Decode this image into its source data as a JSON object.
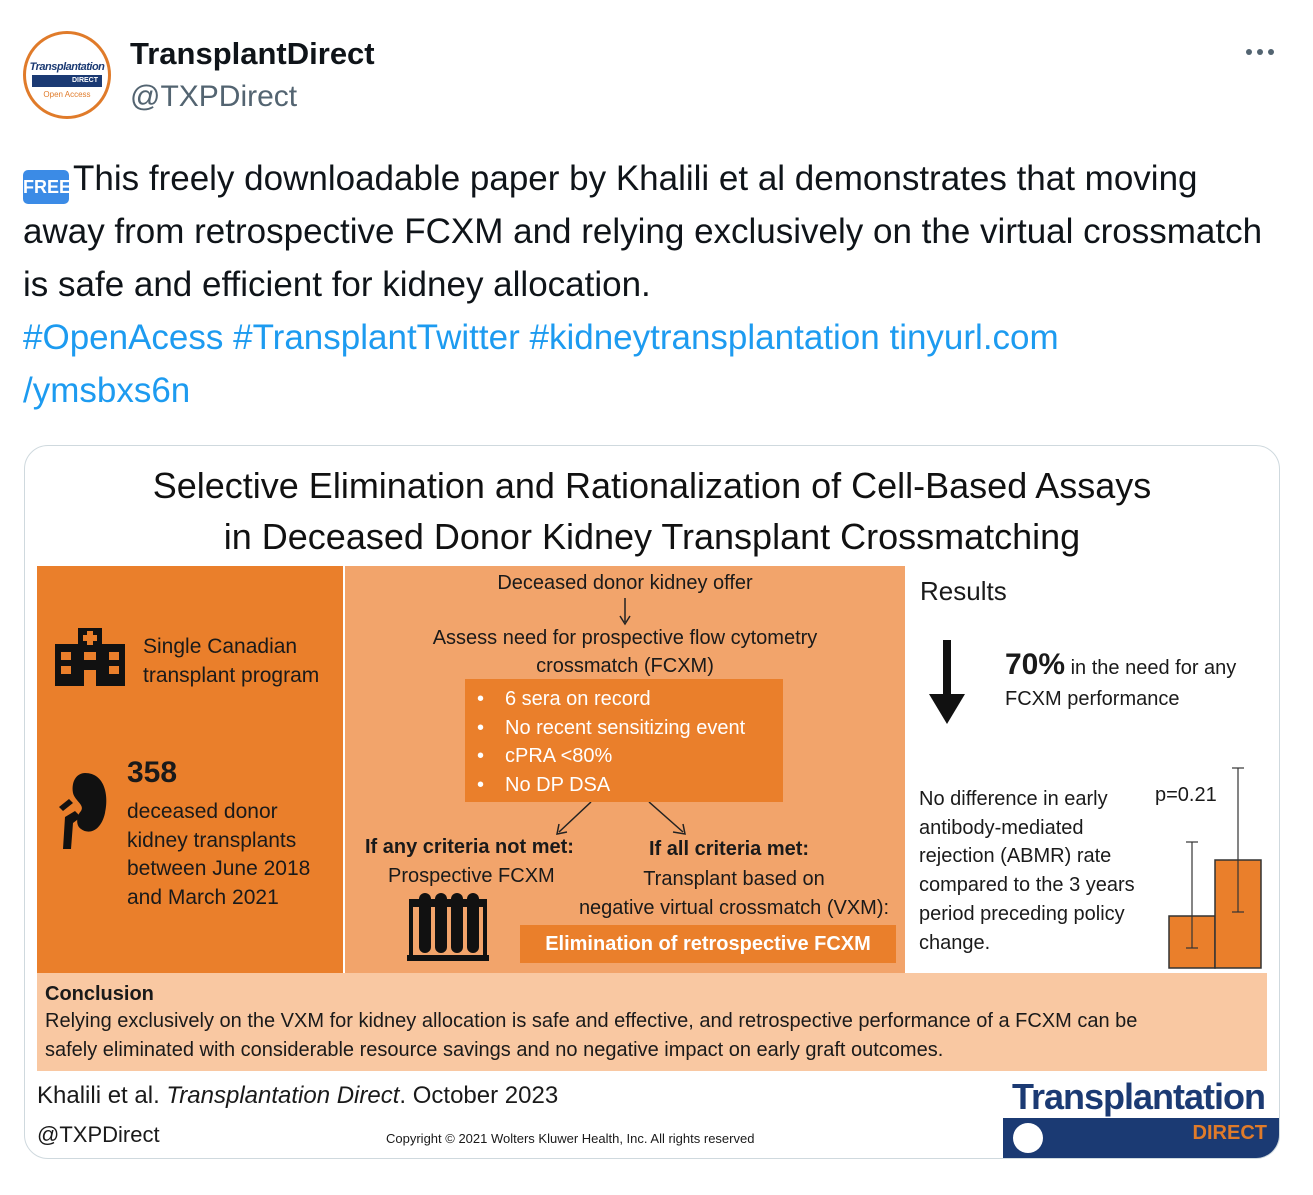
{
  "tweet": {
    "display_name": "TransplantDirect",
    "handle": "@TXPDirect",
    "avatar": {
      "top": "Transplantation",
      "bar": "DIRECT",
      "bottom": "Open Access"
    },
    "free_badge": "FREE",
    "text": "This freely downloadable paper by Khalili et al demonstrates that moving away from retrospective FCXM and relying exclusively on the virtual crossmatch is safe and efficient for kidney allocation.",
    "hashtags": [
      "#OpenAcess",
      "#TransplantTwitter",
      "#kidneytransplantation"
    ],
    "link_line1": "tinyurl.com",
    "link_line2": "/ymsbxs6n"
  },
  "abstract": {
    "title_line1": "Selective Elimination and Rationalization of Cell-Based Assays",
    "title_line2": "in Deceased Donor Kidney Transplant Crossmatching",
    "left": {
      "program_line1": "Single Canadian",
      "program_line2": "transplant program",
      "count": "358",
      "desc_line1": "deceased donor",
      "desc_line2": "kidney transplants",
      "desc_line3": "between June 2018",
      "desc_line4": "and March 2021"
    },
    "middle": {
      "offer": "Deceased donor kidney offer",
      "assess_line1": "Assess need for prospective flow cytometry",
      "assess_line2": "crossmatch (FCXM)",
      "criteria": [
        "6 sera on record",
        "No recent sensitizing event",
        "cPRA <80%",
        "No DP DSA"
      ],
      "not_met_head": "If any criteria not met:",
      "not_met_body": "Prospective FCXM",
      "met_head": "If all criteria met:",
      "met_body_line1": "Transplant based on",
      "met_body_line2": "negative virtual crossmatch (VXM):",
      "elimination": "Elimination of retrospective FCXM"
    },
    "results": {
      "heading": "Results",
      "percent": "70%",
      "percent_text_line1": "in the need for any",
      "percent_text_line2": "FCXM performance",
      "abmr_lines": [
        "No difference in early",
        "antibody-mediated",
        "rejection (ABMR) rate",
        "compared to the 3 years",
        "period preceding policy",
        "change."
      ],
      "p_value": "p=0.21"
    },
    "conclusion": {
      "heading": "Conclusion",
      "line1": "Relying exclusively on the VXM for kidney allocation is safe and effective, and retrospective performance of a FCXM can be",
      "line2": "safely eliminated with considerable resource savings and no negative impact on early graft outcomes."
    },
    "footer": {
      "citation_authors": "Khalili et al. ",
      "citation_journal": "Transplantation Direct",
      "citation_date": ". October 2023",
      "handle": "@TXPDirect",
      "copyright": "Copyright © 2021  Wolters Kluwer Health, Inc. All rights reserved",
      "logo_word": "Transplantation",
      "logo_bar": "DIRECT"
    }
  },
  "colors": {
    "orange": "#ea7f2b",
    "light_orange": "#f2a46b",
    "peach": "#f9c8a2",
    "link": "#1d9bf0",
    "navy": "#1b3a73"
  }
}
